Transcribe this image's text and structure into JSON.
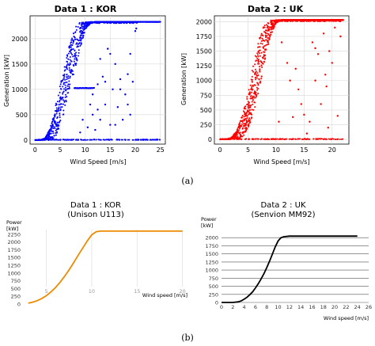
{
  "panels": {
    "a": "(a)",
    "b": "(b)"
  },
  "chart_data": [
    {
      "id": "scatter_kor",
      "type": "scatter",
      "title": "Data 1 : KOR",
      "xlabel": "Wind Speed [m/s]",
      "ylabel": "Generation [kW]",
      "xlim": [
        -1,
        26
      ],
      "ylim": [
        -80,
        2450
      ],
      "xticks": [
        0,
        5,
        10,
        15,
        20,
        25
      ],
      "yticks": [
        0,
        500,
        1000,
        1500,
        2000
      ],
      "grid": true,
      "color": "#0000ff",
      "rated_power": 2330,
      "band_x": [
        0,
        1,
        2,
        3,
        4,
        5,
        6,
        7,
        8,
        9,
        10,
        11,
        12,
        13,
        14,
        15,
        16,
        17,
        18,
        19,
        20,
        21,
        22,
        23,
        24,
        25
      ],
      "band_low": [
        0,
        0,
        0,
        0,
        50,
        270,
        620,
        1010,
        1420,
        1800,
        2150,
        2300,
        2330,
        2330,
        2330,
        2330,
        2330,
        2330,
        2330,
        2330,
        2330,
        2330,
        2330,
        2330,
        2330,
        2330
      ],
      "band_high": [
        0,
        0,
        40,
        240,
        640,
        1080,
        1530,
        1930,
        2240,
        2330,
        2330,
        2330,
        2330,
        2330,
        2330,
        2330,
        2330,
        2330,
        2330,
        2330,
        2330,
        2330,
        2330,
        2330,
        2330,
        2330
      ],
      "zero_line_x": [
        0,
        25
      ],
      "curtail_level": 1020,
      "curtail_x": [
        7.8,
        11.8
      ],
      "outliers": [
        [
          10.5,
          250
        ],
        [
          11,
          700
        ],
        [
          11.5,
          900
        ],
        [
          12,
          200
        ],
        [
          12.5,
          1100
        ],
        [
          13,
          400
        ],
        [
          13.5,
          1250
        ],
        [
          14,
          700
        ],
        [
          14.5,
          1800
        ],
        [
          15,
          300
        ],
        [
          15.5,
          1000
        ],
        [
          16,
          1500
        ],
        [
          16.5,
          650
        ],
        [
          17,
          1200
        ],
        [
          17.5,
          400
        ],
        [
          18,
          900
        ],
        [
          18.5,
          1300
        ],
        [
          19,
          500
        ],
        [
          19.5,
          1150
        ],
        [
          20,
          2150
        ],
        [
          20.2,
          2200
        ],
        [
          9.5,
          400
        ],
        [
          9,
          150
        ],
        [
          13,
          1600
        ],
        [
          15,
          1700
        ],
        [
          11.5,
          500
        ],
        [
          12.5,
          600
        ],
        [
          16,
          300
        ],
        [
          17,
          1000
        ],
        [
          18.5,
          700
        ],
        [
          19,
          1700
        ],
        [
          14,
          1150
        ]
      ]
    },
    {
      "id": "scatter_uk",
      "type": "scatter",
      "title": "Data 2 : UK",
      "xlabel": "Wind Speed [m/s]",
      "ylabel": "Generation [kW]",
      "xlim": [
        -1,
        23
      ],
      "ylim": [
        -80,
        2100
      ],
      "xticks": [
        0,
        5,
        10,
        15,
        20
      ],
      "yticks": [
        0,
        250,
        500,
        750,
        1000,
        1250,
        1500,
        1750,
        2000
      ],
      "grid": true,
      "color": "#ff0000",
      "rated_power": 2030,
      "band_x": [
        0,
        1,
        2,
        3,
        4,
        5,
        6,
        7,
        8,
        9,
        10,
        11,
        12,
        13,
        14,
        15,
        16,
        17,
        18,
        19,
        20,
        21,
        22
      ],
      "band_low": [
        0,
        0,
        0,
        0,
        30,
        180,
        430,
        850,
        1350,
        1750,
        1980,
        2030,
        2030,
        2030,
        2030,
        2030,
        2030,
        2030,
        2030,
        2030,
        2030,
        2030,
        2030
      ],
      "band_high": [
        0,
        0,
        30,
        150,
        420,
        820,
        1300,
        1720,
        1980,
        2030,
        2030,
        2030,
        2030,
        2030,
        2030,
        2030,
        2030,
        2030,
        2030,
        2030,
        2030,
        2030,
        2030
      ],
      "zero_line_x": [
        0,
        22
      ],
      "outliers": [
        [
          11,
          1650
        ],
        [
          12,
          1300
        ],
        [
          13,
          380
        ],
        [
          13.5,
          1200
        ],
        [
          14,
          850
        ],
        [
          15,
          420
        ],
        [
          16,
          300
        ],
        [
          17,
          1000
        ],
        [
          17.5,
          1450
        ],
        [
          18,
          600
        ],
        [
          18.5,
          1800
        ],
        [
          19,
          900
        ],
        [
          19.5,
          1500
        ],
        [
          20,
          1300
        ],
        [
          20.5,
          1900
        ],
        [
          21,
          400
        ],
        [
          17,
          1550
        ],
        [
          16.5,
          1650
        ],
        [
          10.5,
          300
        ],
        [
          12.5,
          1000
        ],
        [
          14.5,
          600
        ],
        [
          18.8,
          1100
        ],
        [
          19.3,
          200
        ],
        [
          15.5,
          100
        ],
        [
          21.5,
          1750
        ]
      ]
    },
    {
      "id": "curve_kor",
      "type": "line",
      "title": "Data 1 : KOR",
      "subtitle": "(Unison U113)",
      "xlabel": "Wind speed [m/s]",
      "ylabel": "Power",
      "yunit": "[kW]",
      "xlim": [
        2.5,
        21
      ],
      "ylim": [
        0,
        2500
      ],
      "xticks": [
        5,
        10,
        15,
        20
      ],
      "yticks": [
        0,
        250,
        500,
        750,
        1000,
        1250,
        1500,
        1750,
        2000,
        2250
      ],
      "grid": "vertical",
      "color": "#ee8a00",
      "x": [
        3,
        3.5,
        4,
        4.5,
        5,
        5.5,
        6,
        6.5,
        7,
        7.5,
        8,
        8.5,
        9,
        9.5,
        10,
        10.5,
        11,
        12,
        13,
        14,
        15,
        16,
        17,
        18,
        19,
        20
      ],
      "y": [
        30,
        60,
        110,
        180,
        270,
        390,
        530,
        700,
        890,
        1100,
        1330,
        1570,
        1800,
        2030,
        2230,
        2330,
        2350,
        2350,
        2350,
        2350,
        2350,
        2350,
        2350,
        2350,
        2350,
        2350
      ]
    },
    {
      "id": "curve_uk",
      "type": "line",
      "title": "Data 2 : UK",
      "subtitle": "(Senvion MM92)",
      "xlabel": "Wind speed [m/s]",
      "ylabel": "Power",
      "yunit": "[kW]",
      "xlim": [
        0,
        26
      ],
      "ylim": [
        0,
        2250
      ],
      "xticks": [
        0,
        2,
        4,
        6,
        8,
        10,
        12,
        14,
        16,
        18,
        20,
        22,
        24,
        26
      ],
      "yticks": [
        0,
        250,
        500,
        750,
        1000,
        1250,
        1500,
        1750,
        2000
      ],
      "grid": "horizontal",
      "color": "#000000",
      "x": [
        0,
        1,
        2,
        3,
        3.5,
        4,
        4.5,
        5,
        5.5,
        6,
        6.5,
        7,
        7.5,
        8,
        8.5,
        9,
        9.5,
        10,
        10.5,
        11,
        12,
        14,
        16,
        18,
        20,
        22,
        24
      ],
      "y": [
        0,
        0,
        0,
        20,
        50,
        100,
        160,
        240,
        330,
        450,
        580,
        730,
        890,
        1080,
        1280,
        1500,
        1720,
        1900,
        2000,
        2030,
        2050,
        2050,
        2050,
        2050,
        2050,
        2050,
        2050
      ]
    }
  ]
}
